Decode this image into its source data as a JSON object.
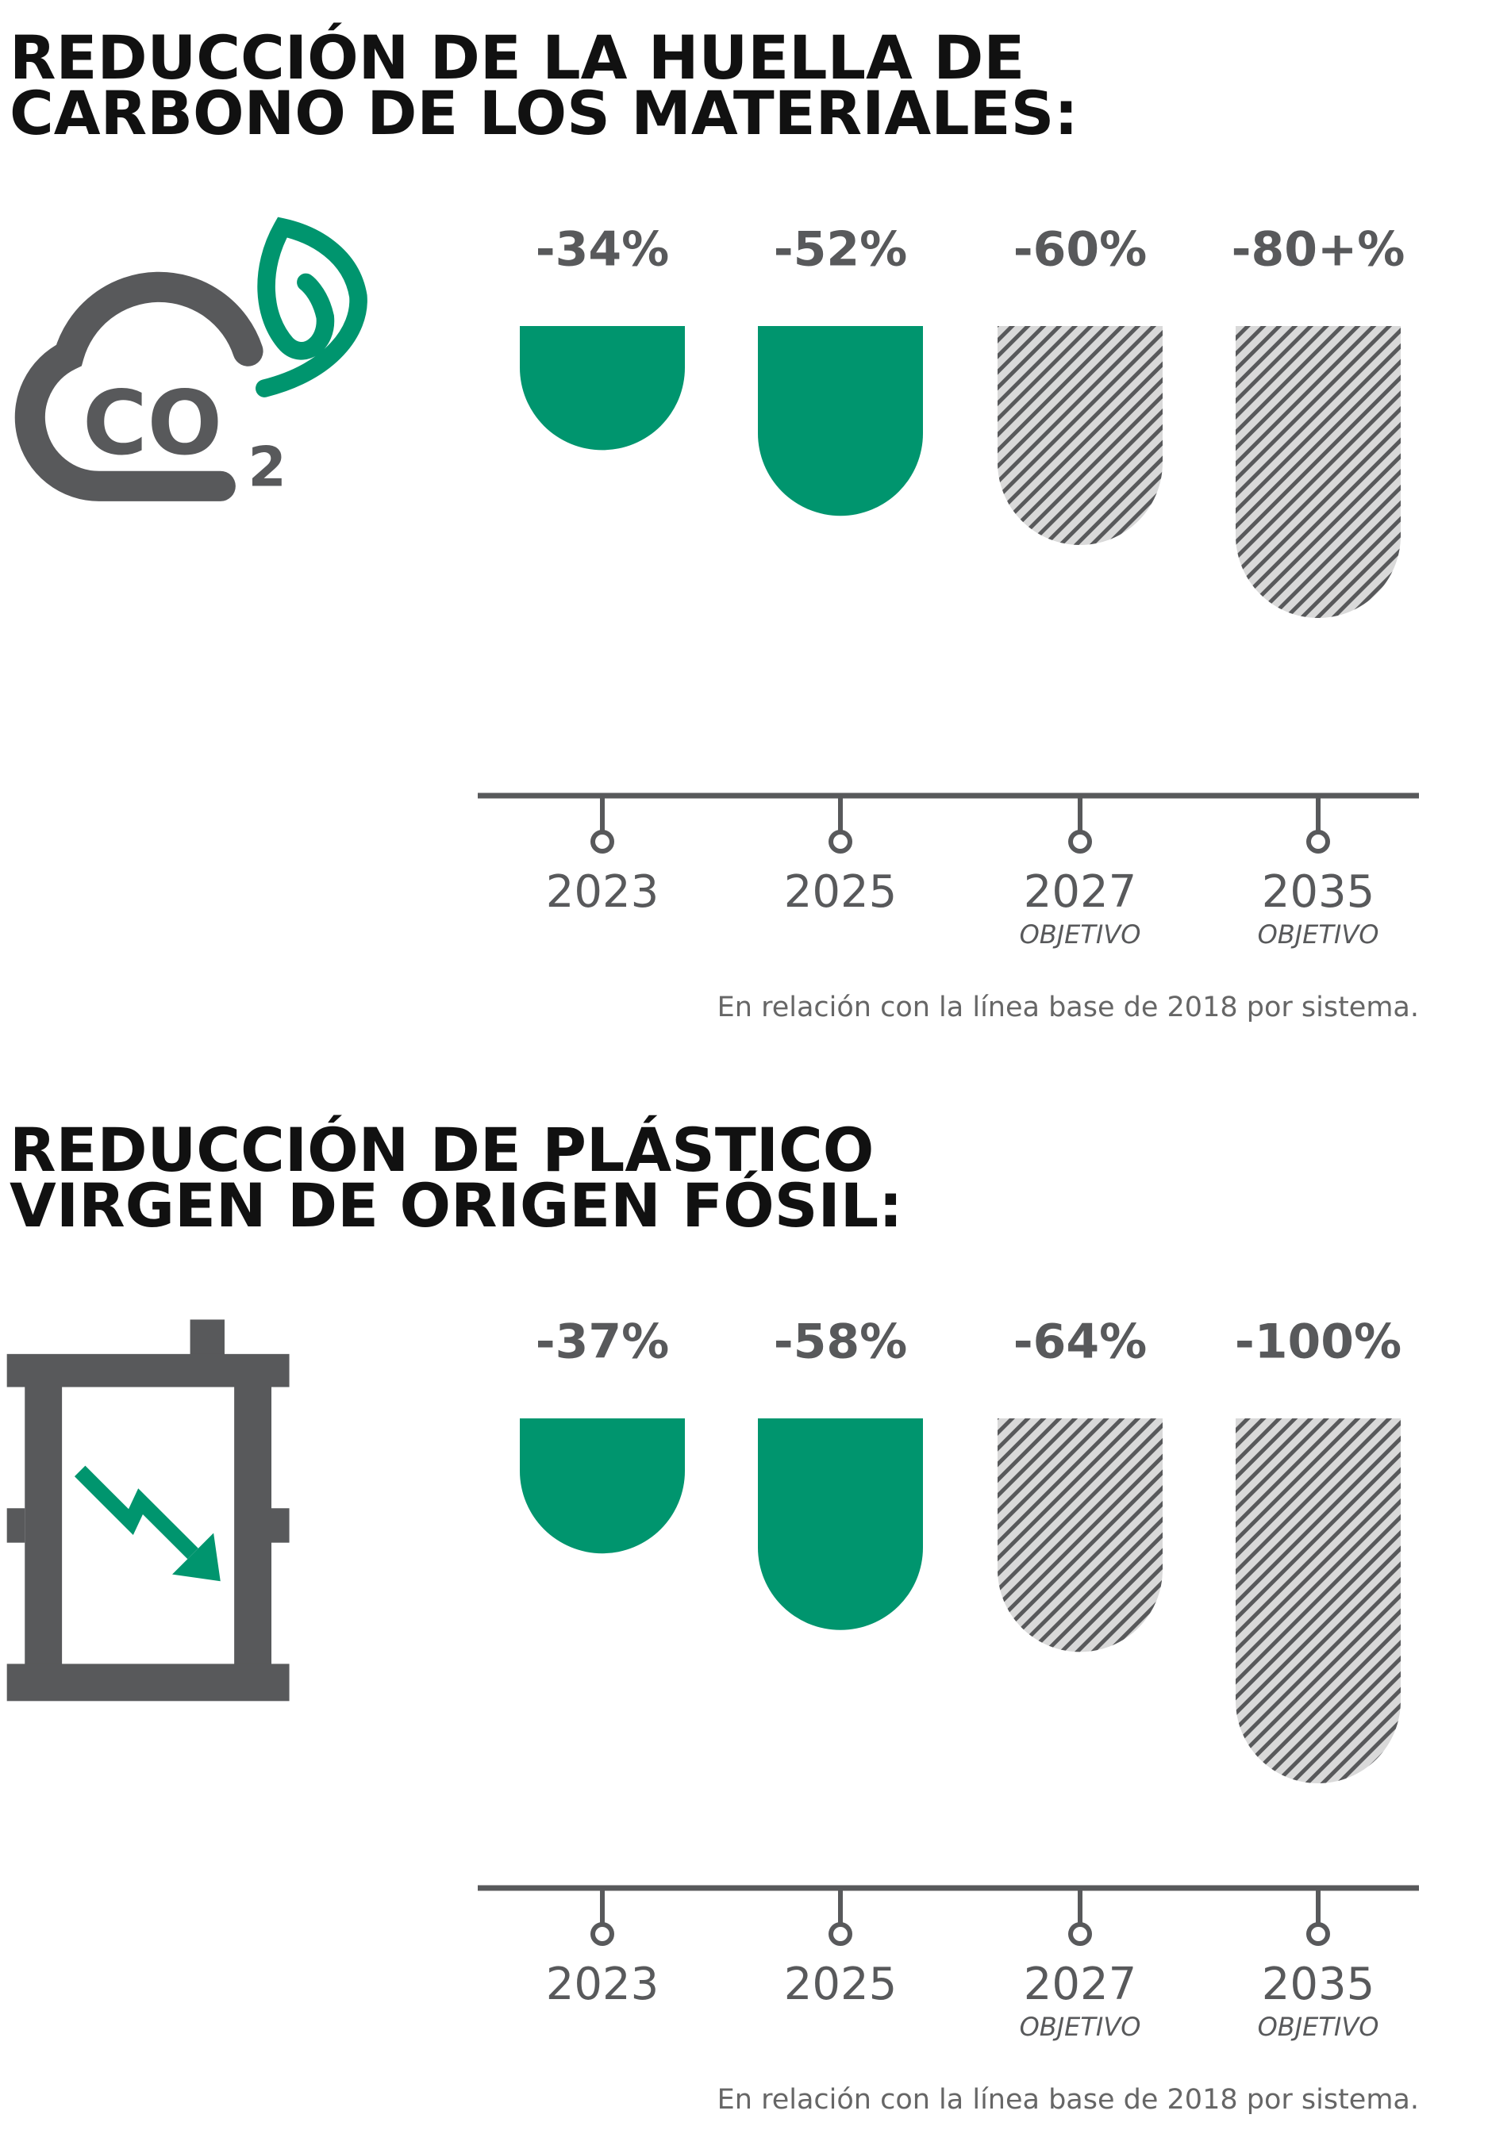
{
  "chart_data": [
    {
      "type": "bar",
      "title": [
        "REDUCCIÓN DE LA HUELLA DE",
        "CARBONO DE LOS MATERIALES:"
      ],
      "icon_text": [
        "CO",
        "2"
      ],
      "categories": [
        "2023",
        "2025",
        "2027",
        "2035"
      ],
      "sublabels": [
        null,
        null,
        "OBJETIVO",
        "OBJETIVO"
      ],
      "values": [
        -34,
        -52,
        -60,
        -80
      ],
      "value_labels": [
        "-34%",
        "-52%",
        "-60%",
        "-80+%"
      ],
      "color": "#00956e",
      "note": "En relación con la línea base de 2018 por sistema."
    },
    {
      "type": "bar",
      "title": [
        "REDUCCIÓN DE PLÁSTICO",
        "VIRGEN DE ORIGEN FÓSIL:"
      ],
      "categories": [
        "2023",
        "2025",
        "2027",
        "2035"
      ],
      "sublabels": [
        null,
        null,
        "OBJETIVO",
        "OBJETIVO"
      ],
      "values": [
        -37,
        -58,
        -64,
        -100
      ],
      "value_labels": [
        "-37%",
        "-58%",
        "-64%",
        "-100%"
      ],
      "color": "#00956e",
      "note": "En relación con la línea base de 2018 por sistema."
    }
  ]
}
